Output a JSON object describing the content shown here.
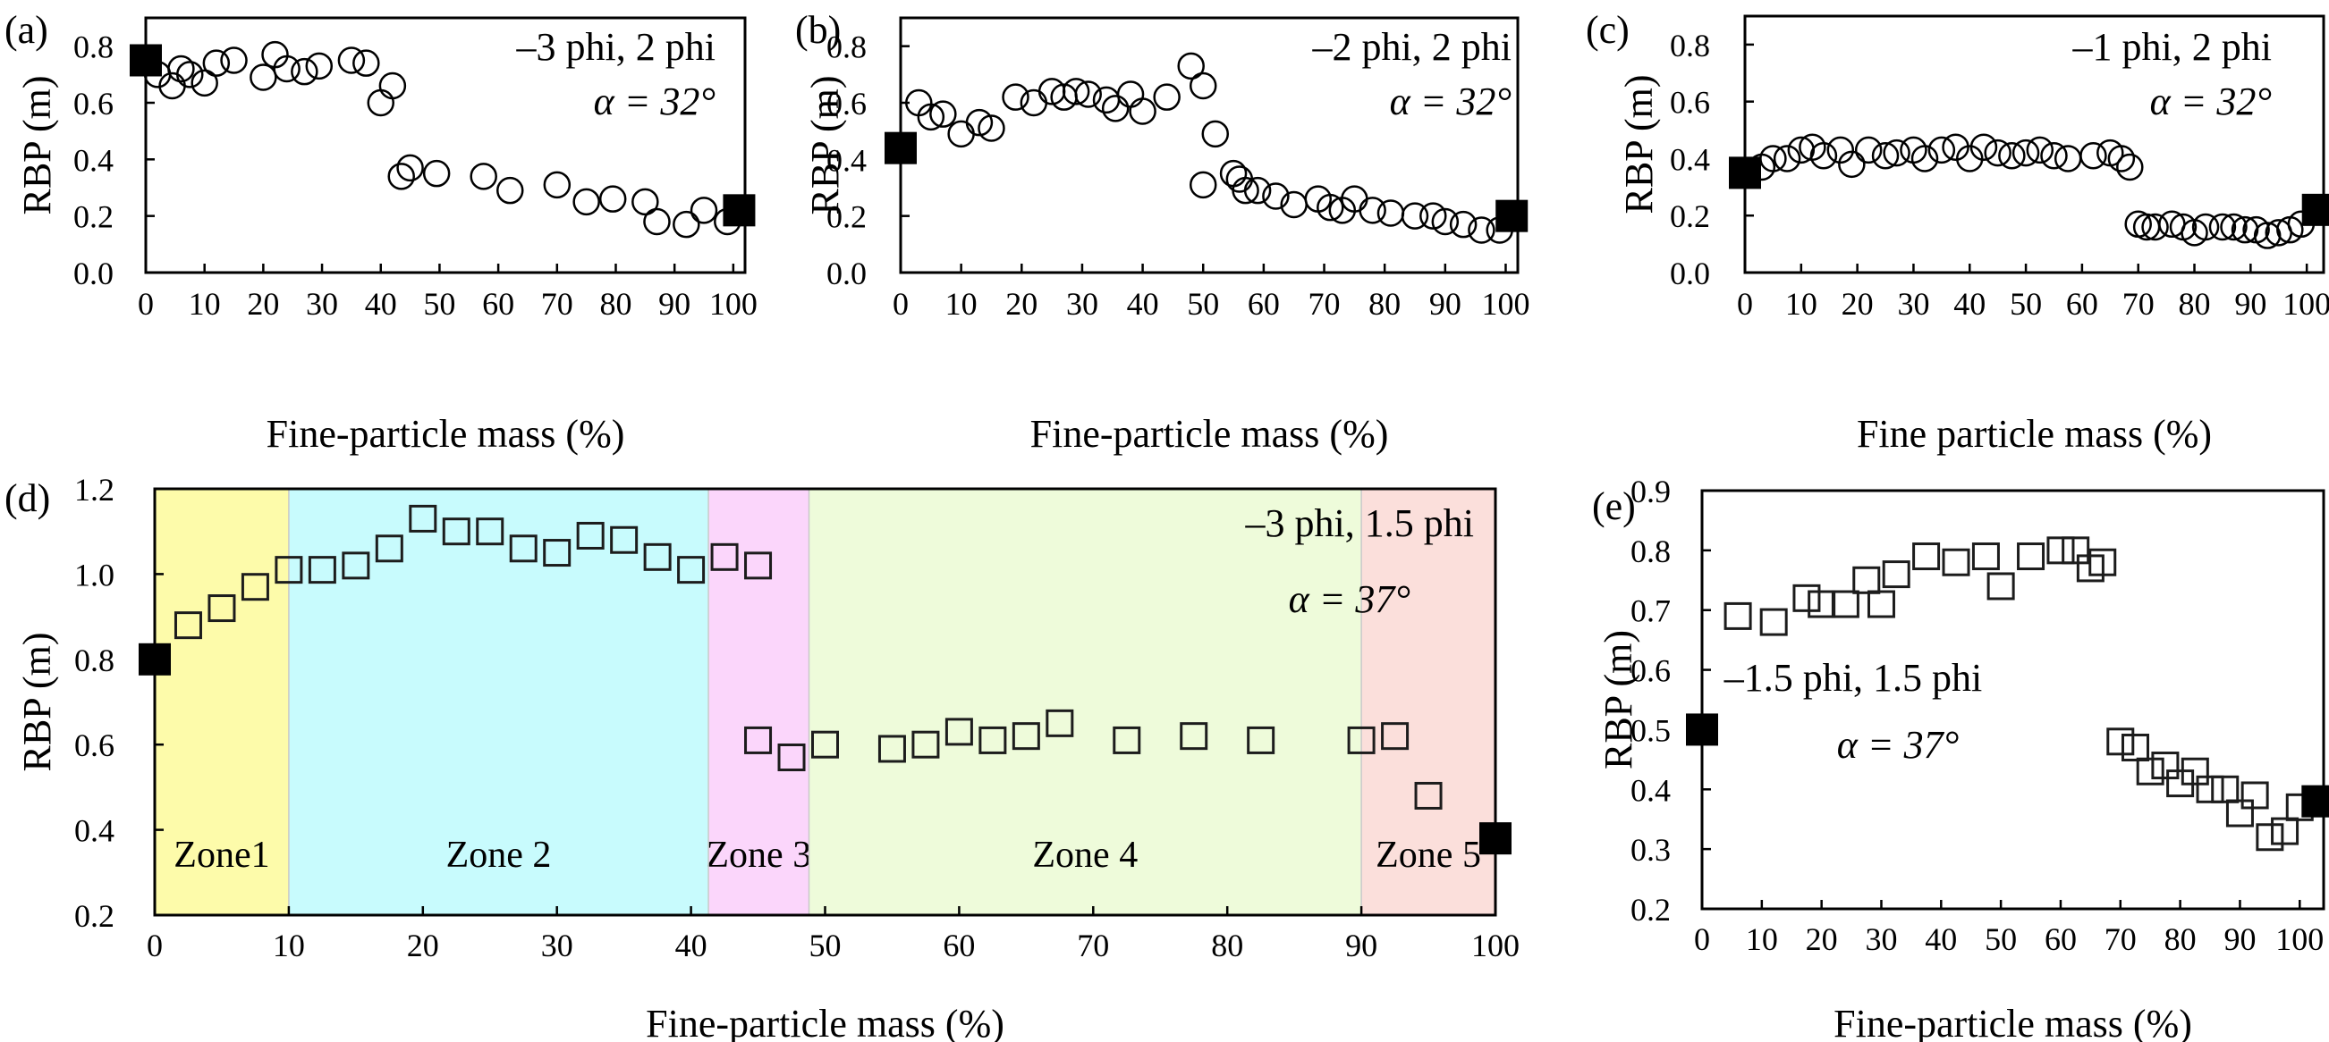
{
  "figure": {
    "panels": [
      "(a)",
      "(b)",
      "(c)",
      "(d)",
      "(e)"
    ]
  },
  "chart_data": [
    {
      "panel": "(a)",
      "type": "scatter",
      "marker": "circle",
      "annotations": [
        "–3 phi, 2 phi",
        "α = 32°"
      ],
      "xlabel": "Fine-particle mass (%)",
      "ylabel": "RBP (m)",
      "xlim": [
        0,
        102
      ],
      "ylim": [
        0,
        0.9
      ],
      "xticks": [
        0,
        10,
        20,
        30,
        40,
        50,
        60,
        70,
        80,
        90,
        100
      ],
      "yticks": [
        0.0,
        0.2,
        0.4,
        0.6,
        0.8
      ],
      "ytick_labels": [
        "0.0",
        "0.2",
        "0.4",
        "0.6",
        "0.8"
      ],
      "endpoints": [
        {
          "x": 0,
          "y": 0.75
        },
        {
          "x": 101,
          "y": 0.22
        }
      ],
      "points": [
        {
          "x": 2,
          "y": 0.7
        },
        {
          "x": 4.5,
          "y": 0.66
        },
        {
          "x": 6,
          "y": 0.72
        },
        {
          "x": 7.5,
          "y": 0.7
        },
        {
          "x": 10,
          "y": 0.67
        },
        {
          "x": 12,
          "y": 0.74
        },
        {
          "x": 15,
          "y": 0.75
        },
        {
          "x": 20,
          "y": 0.69
        },
        {
          "x": 22,
          "y": 0.77
        },
        {
          "x": 24,
          "y": 0.72
        },
        {
          "x": 27,
          "y": 0.71
        },
        {
          "x": 29.5,
          "y": 0.73
        },
        {
          "x": 35,
          "y": 0.75
        },
        {
          "x": 37.5,
          "y": 0.74
        },
        {
          "x": 40,
          "y": 0.6
        },
        {
          "x": 42,
          "y": 0.66
        },
        {
          "x": 43.5,
          "y": 0.34
        },
        {
          "x": 45,
          "y": 0.37
        },
        {
          "x": 49.5,
          "y": 0.35
        },
        {
          "x": 57.5,
          "y": 0.34
        },
        {
          "x": 62,
          "y": 0.29
        },
        {
          "x": 70,
          "y": 0.31
        },
        {
          "x": 75,
          "y": 0.25
        },
        {
          "x": 79.5,
          "y": 0.26
        },
        {
          "x": 85,
          "y": 0.25
        },
        {
          "x": 87,
          "y": 0.18
        },
        {
          "x": 92,
          "y": 0.17
        },
        {
          "x": 95,
          "y": 0.22
        },
        {
          "x": 99,
          "y": 0.18
        }
      ]
    },
    {
      "panel": "(b)",
      "type": "scatter",
      "marker": "circle",
      "annotations": [
        "–2 phi, 2 phi",
        "α = 32°"
      ],
      "xlabel": "Fine-particle mass (%)",
      "ylabel": "RBP (m)",
      "xlim": [
        0,
        102
      ],
      "ylim": [
        0,
        0.9
      ],
      "xticks": [
        0,
        10,
        20,
        30,
        40,
        50,
        60,
        70,
        80,
        90,
        100
      ],
      "yticks": [
        0.0,
        0.2,
        0.4,
        0.6,
        0.8
      ],
      "ytick_labels": [
        "0.0",
        "0.2",
        "0.4",
        "0.6",
        "0.8"
      ],
      "endpoints": [
        {
          "x": 0,
          "y": 0.44
        },
        {
          "x": 101,
          "y": 0.2
        }
      ],
      "points": [
        {
          "x": 3,
          "y": 0.6
        },
        {
          "x": 5,
          "y": 0.55
        },
        {
          "x": 7,
          "y": 0.56
        },
        {
          "x": 10,
          "y": 0.49
        },
        {
          "x": 13,
          "y": 0.53
        },
        {
          "x": 15,
          "y": 0.51
        },
        {
          "x": 19,
          "y": 0.62
        },
        {
          "x": 22,
          "y": 0.6
        },
        {
          "x": 25,
          "y": 0.64
        },
        {
          "x": 27,
          "y": 0.62
        },
        {
          "x": 29,
          "y": 0.64
        },
        {
          "x": 31,
          "y": 0.63
        },
        {
          "x": 34,
          "y": 0.61
        },
        {
          "x": 35.5,
          "y": 0.58
        },
        {
          "x": 38,
          "y": 0.63
        },
        {
          "x": 40,
          "y": 0.57
        },
        {
          "x": 44,
          "y": 0.62
        },
        {
          "x": 48,
          "y": 0.73
        },
        {
          "x": 50,
          "y": 0.66
        },
        {
          "x": 52,
          "y": 0.49
        },
        {
          "x": 50,
          "y": 0.31
        },
        {
          "x": 55,
          "y": 0.35
        },
        {
          "x": 56,
          "y": 0.33
        },
        {
          "x": 57,
          "y": 0.29
        },
        {
          "x": 59,
          "y": 0.29
        },
        {
          "x": 62,
          "y": 0.27
        },
        {
          "x": 65,
          "y": 0.24
        },
        {
          "x": 69,
          "y": 0.26
        },
        {
          "x": 71,
          "y": 0.23
        },
        {
          "x": 73,
          "y": 0.22
        },
        {
          "x": 75,
          "y": 0.26
        },
        {
          "x": 78,
          "y": 0.22
        },
        {
          "x": 81,
          "y": 0.21
        },
        {
          "x": 85,
          "y": 0.2
        },
        {
          "x": 88,
          "y": 0.2
        },
        {
          "x": 90,
          "y": 0.18
        },
        {
          "x": 93,
          "y": 0.17
        },
        {
          "x": 96,
          "y": 0.15
        },
        {
          "x": 99,
          "y": 0.15
        }
      ]
    },
    {
      "panel": "(c)",
      "type": "scatter",
      "marker": "circle",
      "annotations": [
        "–1 phi, 2 phi",
        "α = 32°"
      ],
      "xlabel": "Fine particle mass (%)",
      "ylabel": "RBP (m)",
      "xlim": [
        0,
        103
      ],
      "ylim": [
        0,
        0.9
      ],
      "xticks": [
        0,
        10,
        20,
        30,
        40,
        50,
        60,
        70,
        80,
        90,
        100
      ],
      "yticks": [
        0.0,
        0.2,
        0.4,
        0.6,
        0.8
      ],
      "ytick_labels": [
        "0.0",
        "0.2",
        "0.4",
        "0.6",
        "0.8"
      ],
      "endpoints": [
        {
          "x": 0,
          "y": 0.35
        },
        {
          "x": 102,
          "y": 0.22
        }
      ],
      "points": [
        {
          "x": 3,
          "y": 0.37
        },
        {
          "x": 5,
          "y": 0.4
        },
        {
          "x": 7.5,
          "y": 0.4
        },
        {
          "x": 10,
          "y": 0.43
        },
        {
          "x": 12,
          "y": 0.44
        },
        {
          "x": 14,
          "y": 0.41
        },
        {
          "x": 17,
          "y": 0.43
        },
        {
          "x": 19,
          "y": 0.38
        },
        {
          "x": 22,
          "y": 0.43
        },
        {
          "x": 25,
          "y": 0.41
        },
        {
          "x": 27,
          "y": 0.42
        },
        {
          "x": 30,
          "y": 0.43
        },
        {
          "x": 32,
          "y": 0.4
        },
        {
          "x": 35,
          "y": 0.43
        },
        {
          "x": 37.5,
          "y": 0.44
        },
        {
          "x": 40,
          "y": 0.4
        },
        {
          "x": 42.5,
          "y": 0.44
        },
        {
          "x": 45,
          "y": 0.42
        },
        {
          "x": 47.5,
          "y": 0.41
        },
        {
          "x": 50,
          "y": 0.42
        },
        {
          "x": 52.5,
          "y": 0.43
        },
        {
          "x": 55,
          "y": 0.41
        },
        {
          "x": 57.5,
          "y": 0.4
        },
        {
          "x": 62,
          "y": 0.41
        },
        {
          "x": 65,
          "y": 0.42
        },
        {
          "x": 67,
          "y": 0.4
        },
        {
          "x": 68.5,
          "y": 0.37
        },
        {
          "x": 70,
          "y": 0.17
        },
        {
          "x": 71.5,
          "y": 0.16
        },
        {
          "x": 73,
          "y": 0.16
        },
        {
          "x": 76,
          "y": 0.17
        },
        {
          "x": 78,
          "y": 0.16
        },
        {
          "x": 80,
          "y": 0.14
        },
        {
          "x": 82,
          "y": 0.16
        },
        {
          "x": 85,
          "y": 0.16
        },
        {
          "x": 87,
          "y": 0.16
        },
        {
          "x": 89,
          "y": 0.15
        },
        {
          "x": 91,
          "y": 0.15
        },
        {
          "x": 93,
          "y": 0.13
        },
        {
          "x": 95,
          "y": 0.14
        },
        {
          "x": 97,
          "y": 0.15
        },
        {
          "x": 99,
          "y": 0.17
        }
      ]
    },
    {
      "panel": "(d)",
      "type": "scatter",
      "marker": "square",
      "annotations": [
        "–3 phi, 1.5 phi",
        "α = 37°"
      ],
      "xlabel": "Fine-particle mass (%)",
      "ylabel": "RBP (m)",
      "xlim": [
        0,
        100
      ],
      "ylim": [
        0.2,
        1.2
      ],
      "xticks": [
        0,
        10,
        20,
        30,
        40,
        50,
        60,
        70,
        80,
        90,
        100
      ],
      "yticks": [
        0.2,
        0.4,
        0.6,
        0.8,
        1.0,
        1.2
      ],
      "ytick_labels": [
        "0.2",
        "0.4",
        "0.6",
        "0.8",
        "1.0",
        "1.2"
      ],
      "zones": [
        {
          "label": "Zone1",
          "x0": 0,
          "x1": 10,
          "color": "#fdfbaa"
        },
        {
          "label": "Zone 2",
          "x0": 10,
          "x1": 41.3,
          "color": "#c8fbfd"
        },
        {
          "label": "Zone 3",
          "x0": 41.3,
          "x1": 48.8,
          "color": "#fbd6fb"
        },
        {
          "label": "Zone 4",
          "x0": 48.8,
          "x1": 90,
          "color": "#eefbda"
        },
        {
          "label": "Zone 5",
          "x0": 90,
          "x1": 100,
          "color": "#fbdfdb"
        }
      ],
      "endpoints": [
        {
          "x": 0,
          "y": 0.8
        },
        {
          "x": 100,
          "y": 0.38
        }
      ],
      "points": [
        {
          "x": 2.5,
          "y": 0.88
        },
        {
          "x": 5,
          "y": 0.92
        },
        {
          "x": 7.5,
          "y": 0.97
        },
        {
          "x": 10,
          "y": 1.01
        },
        {
          "x": 12.5,
          "y": 1.01
        },
        {
          "x": 15,
          "y": 1.02
        },
        {
          "x": 17.5,
          "y": 1.06
        },
        {
          "x": 20,
          "y": 1.13
        },
        {
          "x": 22.5,
          "y": 1.1
        },
        {
          "x": 25,
          "y": 1.1
        },
        {
          "x": 27.5,
          "y": 1.06
        },
        {
          "x": 30,
          "y": 1.05
        },
        {
          "x": 32.5,
          "y": 1.09
        },
        {
          "x": 35,
          "y": 1.08
        },
        {
          "x": 37.5,
          "y": 1.04
        },
        {
          "x": 40,
          "y": 1.01
        },
        {
          "x": 42.5,
          "y": 1.04
        },
        {
          "x": 45,
          "y": 1.02
        },
        {
          "x": 45,
          "y": 0.61
        },
        {
          "x": 47.5,
          "y": 0.57
        },
        {
          "x": 50,
          "y": 0.6
        },
        {
          "x": 55,
          "y": 0.59
        },
        {
          "x": 57.5,
          "y": 0.6
        },
        {
          "x": 60,
          "y": 0.63
        },
        {
          "x": 62.5,
          "y": 0.61
        },
        {
          "x": 65,
          "y": 0.62
        },
        {
          "x": 67.5,
          "y": 0.65
        },
        {
          "x": 72.5,
          "y": 0.61
        },
        {
          "x": 77.5,
          "y": 0.62
        },
        {
          "x": 82.5,
          "y": 0.61
        },
        {
          "x": 90,
          "y": 0.61
        },
        {
          "x": 92.5,
          "y": 0.62
        },
        {
          "x": 95,
          "y": 0.48
        }
      ]
    },
    {
      "panel": "(e)",
      "type": "scatter",
      "marker": "square",
      "annotations": [
        "–1.5 phi, 1.5 phi",
        "α = 37°"
      ],
      "xlabel": "Fine-particle mass (%)",
      "ylabel": "RBP (m)",
      "xlim": [
        0,
        104
      ],
      "ylim": [
        0.2,
        0.9
      ],
      "xticks": [
        0,
        10,
        20,
        30,
        40,
        50,
        60,
        70,
        80,
        90,
        100
      ],
      "yticks": [
        0.2,
        0.3,
        0.4,
        0.5,
        0.6,
        0.7,
        0.8,
        0.9
      ],
      "ytick_labels": [
        "0.2",
        "0.3",
        "0.4",
        "0.5",
        "0.6",
        "0.7",
        "0.8",
        "0.9"
      ],
      "endpoints": [
        {
          "x": 0,
          "y": 0.5
        },
        {
          "x": 103,
          "y": 0.38
        }
      ],
      "points": [
        {
          "x": 6,
          "y": 0.69
        },
        {
          "x": 12,
          "y": 0.68
        },
        {
          "x": 17.5,
          "y": 0.72
        },
        {
          "x": 20,
          "y": 0.71
        },
        {
          "x": 24,
          "y": 0.71
        },
        {
          "x": 27.5,
          "y": 0.75
        },
        {
          "x": 30,
          "y": 0.71
        },
        {
          "x": 32.5,
          "y": 0.76
        },
        {
          "x": 37.5,
          "y": 0.79
        },
        {
          "x": 42.5,
          "y": 0.78
        },
        {
          "x": 47.5,
          "y": 0.79
        },
        {
          "x": 50,
          "y": 0.74
        },
        {
          "x": 55,
          "y": 0.79
        },
        {
          "x": 60,
          "y": 0.8
        },
        {
          "x": 62.5,
          "y": 0.8
        },
        {
          "x": 65,
          "y": 0.77
        },
        {
          "x": 67,
          "y": 0.78
        },
        {
          "x": 70,
          "y": 0.48
        },
        {
          "x": 72.5,
          "y": 0.47
        },
        {
          "x": 75,
          "y": 0.43
        },
        {
          "x": 77.5,
          "y": 0.44
        },
        {
          "x": 80,
          "y": 0.41
        },
        {
          "x": 82.5,
          "y": 0.43
        },
        {
          "x": 85,
          "y": 0.4
        },
        {
          "x": 87.5,
          "y": 0.4
        },
        {
          "x": 90,
          "y": 0.36
        },
        {
          "x": 92.5,
          "y": 0.39
        },
        {
          "x": 95,
          "y": 0.32
        },
        {
          "x": 97.5,
          "y": 0.33
        },
        {
          "x": 100,
          "y": 0.37
        }
      ]
    }
  ]
}
